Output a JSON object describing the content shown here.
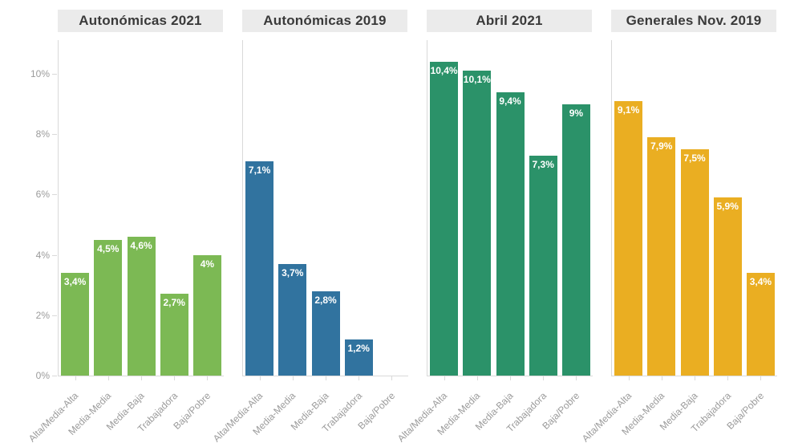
{
  "chart_data": {
    "type": "bar",
    "layout": "small-multiples",
    "categories": [
      "Alta/Media-Alta",
      "Media-Media",
      "Media-Baja",
      "Trabajadora",
      "Baja/Pobre"
    ],
    "y_axis": {
      "tick_labels": [
        "0%",
        "2%",
        "4%",
        "6%",
        "8%",
        "10%"
      ],
      "min": 0,
      "max": 10,
      "step": 2,
      "unit": "%"
    },
    "grid": false,
    "legend": "none",
    "panels": [
      {
        "title": "Autonómicas 2021",
        "color": "#7cb954",
        "values": [
          3.4,
          4.5,
          4.6,
          2.7,
          4
        ],
        "value_labels": [
          "3,4%",
          "4,5%",
          "4,6%",
          "2,7%",
          "4%"
        ]
      },
      {
        "title": "Autonómicas 2019",
        "color": "#31739f",
        "values": [
          7.1,
          3.7,
          2.8,
          1.2,
          null
        ],
        "value_labels": [
          "7,1%",
          "3,7%",
          "2,8%",
          "1,2%",
          null
        ]
      },
      {
        "title": "Abril 2021",
        "color": "#2b9269",
        "values": [
          10.4,
          10.1,
          9.4,
          7.3,
          9
        ],
        "value_labels": [
          "10,4%",
          "10,1%",
          "9,4%",
          "7,3%",
          "9%"
        ]
      },
      {
        "title": "Generales Nov. 2019",
        "color": "#eaae22",
        "values": [
          9.1,
          7.9,
          7.5,
          5.9,
          3.4
        ],
        "value_labels": [
          "9,1%",
          "7,9%",
          "7,5%",
          "5,9%",
          "3,4%"
        ]
      }
    ]
  },
  "colors": {
    "background": "#ffffff",
    "panel_header_bg": "#ebebeb",
    "panel_header_text": "#3a3a3a",
    "axis_line": "#d9d9d9",
    "axis_label": "#9b9b9b",
    "bar_value_label": "#ffffff"
  }
}
